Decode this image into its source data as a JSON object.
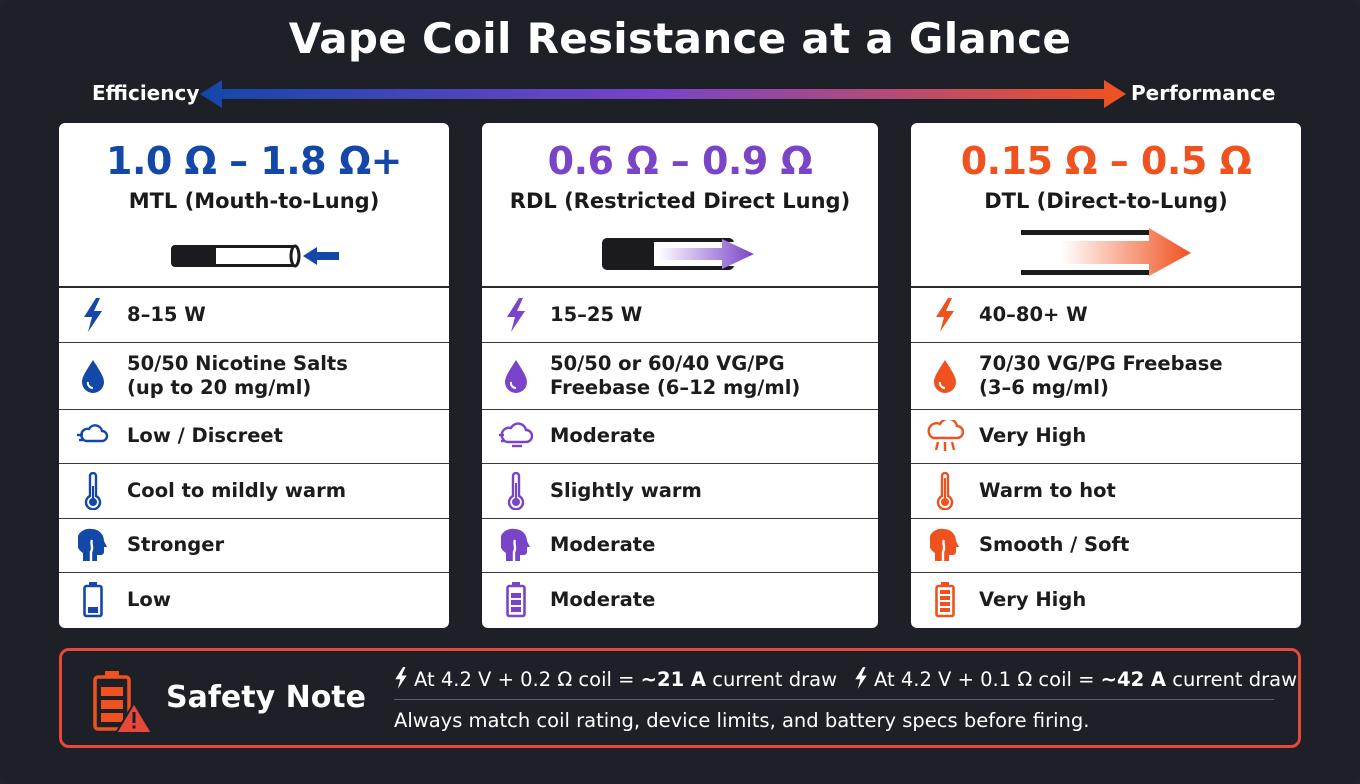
{
  "title": "Vape Coil Resistance at a Glance",
  "scale": {
    "left_label": "Efficiency",
    "right_label": "Performance"
  },
  "colors": {
    "blue": "#1347a8",
    "purple": "#7a44c8",
    "orange": "#f0521f",
    "red": "#e8483a"
  },
  "cards": [
    {
      "resistance": "1.0 Ω – 1.8 Ω+",
      "style": "MTL (Mouth-to-Lung)",
      "rows": [
        {
          "icon": "lightning-icon",
          "text": "8–15 W"
        },
        {
          "icon": "drop-icon",
          "line1": "50/50 Nicotine Salts",
          "line2": "(up to 20 mg/ml)"
        },
        {
          "icon": "vapor-cloud-icon",
          "text": "Low / Discreet"
        },
        {
          "icon": "thermometer-icon",
          "text": "Cool to mildly warm"
        },
        {
          "icon": "throat-head-icon",
          "text": "Stronger"
        },
        {
          "icon": "battery-icon",
          "text": "Low"
        }
      ]
    },
    {
      "resistance": "0.6 Ω – 0.9 Ω",
      "style": "RDL (Restricted Direct Lung)",
      "rows": [
        {
          "icon": "lightning-icon",
          "text": "15–25 W"
        },
        {
          "icon": "drop-icon",
          "line1": "50/50 or 60/40 VG/PG",
          "line2": "Freebase (6–12 mg/ml)"
        },
        {
          "icon": "vapor-cloud-icon",
          "text": "Moderate"
        },
        {
          "icon": "thermometer-icon",
          "text": "Slightly warm"
        },
        {
          "icon": "throat-head-icon",
          "text": "Moderate"
        },
        {
          "icon": "battery-icon",
          "text": "Moderate"
        }
      ]
    },
    {
      "resistance": "0.15 Ω – 0.5 Ω",
      "style": "DTL (Direct-to-Lung)",
      "rows": [
        {
          "icon": "lightning-icon",
          "text": "40–80+ W"
        },
        {
          "icon": "drop-icon",
          "line1": "70/30 VG/PG Freebase",
          "line2": "(3–6 mg/ml)"
        },
        {
          "icon": "vapor-cloud-icon",
          "text": "Very High"
        },
        {
          "icon": "thermometer-icon",
          "text": "Warm to hot"
        },
        {
          "icon": "throat-head-icon",
          "text": "Smooth / Soft"
        },
        {
          "icon": "battery-icon",
          "text": "Very High"
        }
      ]
    }
  ],
  "safety": {
    "title": "Safety Note",
    "line_a": {
      "pre": "At 4.2 V + 0.2 Ω coil = ",
      "bold": "~21 A",
      "post": " current draw"
    },
    "line_b": {
      "pre": "At 4.2 V + 0.1 Ω coil = ",
      "bold": "~42 A",
      "post": " current draw"
    },
    "note": "Always match coil rating, device limits, and battery specs before firing."
  }
}
